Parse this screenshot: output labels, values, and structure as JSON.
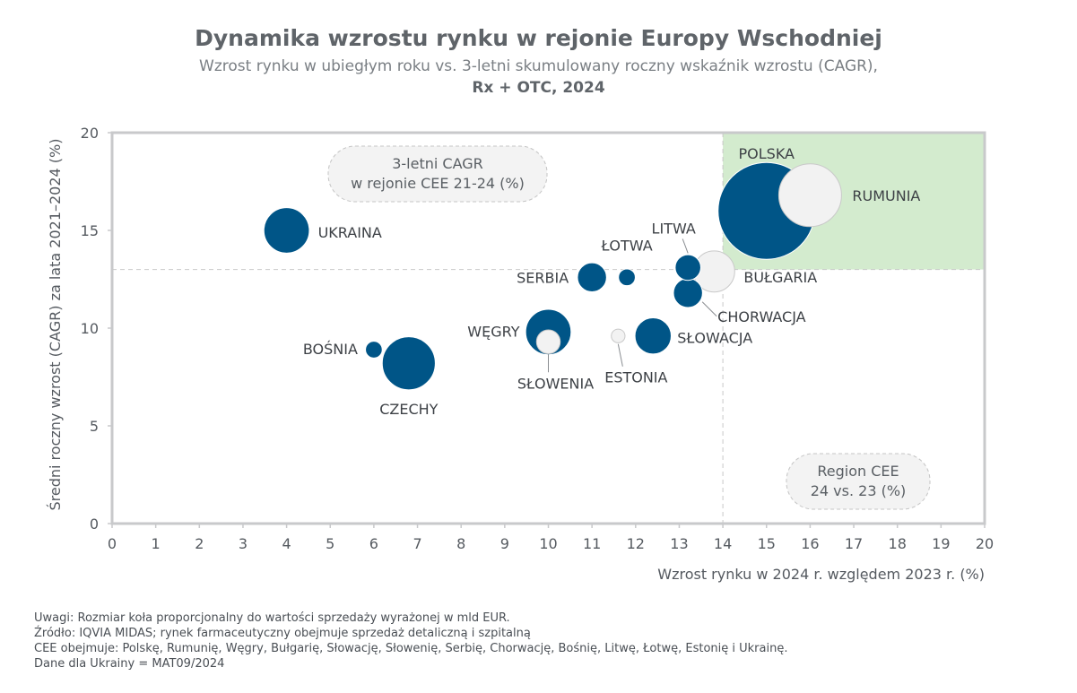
{
  "title": "Dynamika wzrostu rynku w rejonie Europy Wschodniej",
  "subtitle": "Wzrost rynku w ubiegłym roku vs. 3-letni skumulowany roczny wskaźnik wzrostu (CAGR),",
  "subtitle2": "Rx + OTC, 2024",
  "notes": [
    "Uwagi: Rozmiar koła proporcjonalny do wartości sprzedaży wyrażonej w mld EUR.",
    "Źródło: IQVIA MIDAS; rynek farmaceutyczny obejmuje sprzedaż detaliczną i szpitalną",
    "CEE obejmuje: Polskę, Rumunię, Węgry, Bułgarię, Słowację, Słowenię, Serbię, Chorwację, Bośnię, Litwę, Łotwę, Estonię i Ukrainę.",
    "Dane dla Ukrainy = MAT09/2024"
  ],
  "colors": {
    "dark_bubble": "#005587",
    "light_bubble": "#f2f2f2",
    "highlight_quadrant": "#d3ebce",
    "axis": "#c8c9cb"
  },
  "chart_data": {
    "type": "scatter",
    "xlabel": "Wzrost rynku w 2024 r. względem 2023 r. (%)",
    "ylabel": "Średni roczny wzrost (CAGR) za lata 2021–2024 (%)",
    "xlim": [
      0,
      20
    ],
    "ylim": [
      0,
      20
    ],
    "x_ticks": [
      "0",
      "1",
      "2",
      "3",
      "4",
      "5",
      "6",
      "7",
      "8",
      "9",
      "10",
      "11",
      "12",
      "13",
      "14",
      "15",
      "16",
      "17",
      "18",
      "19",
      "20"
    ],
    "y_ticks": [
      "0",
      "5",
      "10",
      "15",
      "20"
    ],
    "reference_lines": {
      "x": 14,
      "y": 13
    },
    "highlight_quadrant": "top-right",
    "annotations": [
      {
        "text": [
          "3-letni CAGR",
          "w rejonie CEE 21-24 (%)"
        ]
      },
      {
        "text": [
          "Region CEE",
          "24 vs. 23 (%)"
        ]
      }
    ],
    "points": [
      {
        "name": "POLSKA",
        "x": 15.0,
        "y": 16.0,
        "size": 100,
        "style": "dark"
      },
      {
        "name": "RUMUNIA",
        "x": 16.0,
        "y": 16.8,
        "size": 42,
        "style": "light"
      },
      {
        "name": "UKRAINA",
        "x": 4.0,
        "y": 15.0,
        "size": 22,
        "style": "dark"
      },
      {
        "name": "LITWA",
        "x": 13.2,
        "y": 13.1,
        "size": 7,
        "style": "dark"
      },
      {
        "name": "ŁOTWA",
        "x": 11.8,
        "y": 12.6,
        "size": 3,
        "style": "dark"
      },
      {
        "name": "BUŁGARIA",
        "x": 13.8,
        "y": 12.9,
        "size": 18,
        "style": "light"
      },
      {
        "name": "SERBIA",
        "x": 11.0,
        "y": 12.6,
        "size": 9,
        "style": "dark"
      },
      {
        "name": "CHORWACJA",
        "x": 13.2,
        "y": 11.8,
        "size": 9,
        "style": "dark"
      },
      {
        "name": "WĘGRY",
        "x": 10.0,
        "y": 9.8,
        "size": 22,
        "style": "dark"
      },
      {
        "name": "SŁOWENIA",
        "x": 10.0,
        "y": 9.3,
        "size": 6,
        "style": "light"
      },
      {
        "name": "ESTONIA",
        "x": 11.6,
        "y": 9.6,
        "size": 2,
        "style": "light"
      },
      {
        "name": "SŁOWACJA",
        "x": 12.4,
        "y": 9.6,
        "size": 14,
        "style": "dark"
      },
      {
        "name": "BOŚNIA",
        "x": 6.0,
        "y": 8.9,
        "size": 3,
        "style": "dark"
      },
      {
        "name": "CZECHY",
        "x": 6.8,
        "y": 8.2,
        "size": 30,
        "style": "dark"
      }
    ]
  }
}
